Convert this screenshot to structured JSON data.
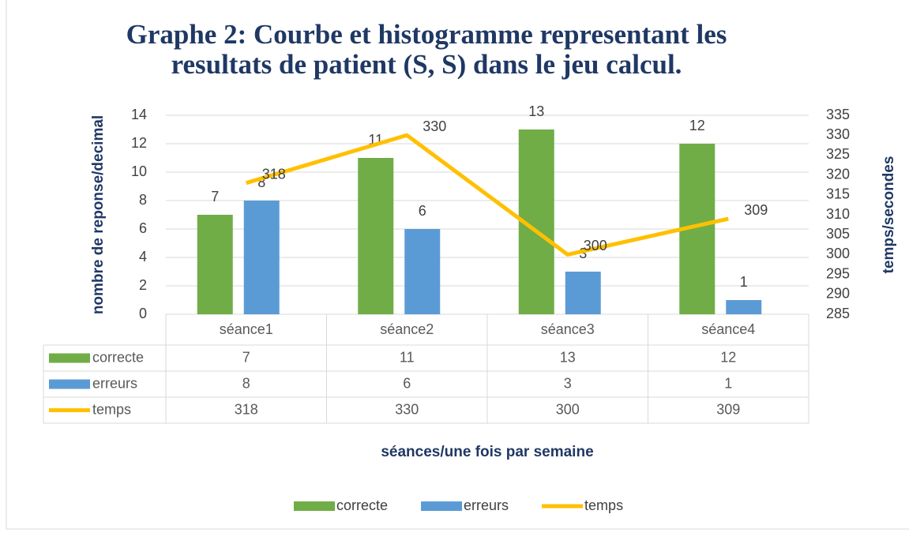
{
  "chart_data": {
    "type": "bar",
    "title": "Graphe 2: Courbe et histogramme representant les resultats de patient (S, S) dans le jeu calcul.",
    "title_lines": [
      "Graphe 2: Courbe et histogramme representant les",
      "resultats de patient (S, S) dans le jeu calcul."
    ],
    "y_label": "nombre de reponse/decimal",
    "y2_label": "temps/secondes",
    "x_label": "séances/une fois par semaine",
    "categories": [
      "séance1",
      "séance2",
      "séance3",
      "séance4"
    ],
    "series": [
      {
        "name": "correcte",
        "type": "bar",
        "color": "#70ad47",
        "values": [
          7,
          11,
          13,
          12
        ]
      },
      {
        "name": "erreurs",
        "type": "bar",
        "color": "#5b9bd5",
        "values": [
          8,
          6,
          3,
          1
        ]
      },
      {
        "name": "temps",
        "type": "line",
        "axis": "y2",
        "color": "#ffc000",
        "values": [
          318,
          330,
          300,
          309
        ]
      }
    ],
    "ylim": [
      0,
      14
    ],
    "yticks": [
      0,
      2,
      4,
      6,
      8,
      10,
      12,
      14
    ],
    "y2lim": [
      285,
      335
    ],
    "y2ticks": [
      285,
      290,
      295,
      300,
      305,
      310,
      315,
      320,
      325,
      330,
      335
    ],
    "grid": true,
    "legend": "bottom",
    "data_table": true
  }
}
